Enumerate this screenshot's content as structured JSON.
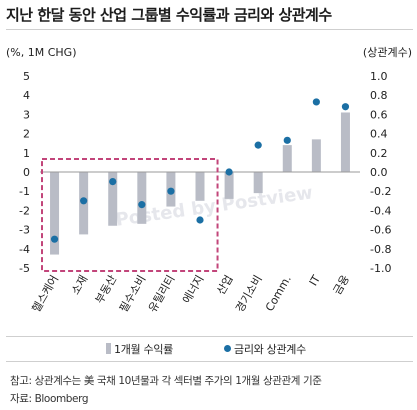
{
  "header": {
    "title": "지난 한달 동안 산업 그룹별 수익률과 금리와 상관계수"
  },
  "legend": {
    "bar_label": "1개월 수익률",
    "dot_label": "금리와 상관계수"
  },
  "footer": {
    "note": "참고: 상관계수는 美 국채 10년물과 각 섹터별 주가의 1개월 상관관계 기준",
    "source": "자료: Bloomberg"
  },
  "colors": {
    "bar": "#b9bcc6",
    "dot": "#1b6fa4",
    "highlight_box": "#c2457a"
  },
  "chart_data": {
    "type": "bar",
    "categories": [
      "헬스케어",
      "소재",
      "부동산",
      "필수소비",
      "유틸리티",
      "에너지",
      "산업",
      "경기소비",
      "Comm.",
      "IT",
      "금융"
    ],
    "left_axis": {
      "label": "(%, 1M CHG)",
      "ylim": [
        -5,
        5
      ],
      "ticks": [
        5,
        4,
        3,
        2,
        1,
        0,
        -1,
        -2,
        -3,
        -4,
        -5
      ]
    },
    "right_axis": {
      "label": "(상관계수)",
      "ylim": [
        -1.0,
        1.0
      ],
      "ticks": [
        "1.0",
        "0.8",
        "0.6",
        "0.4",
        "0.2",
        "0.0",
        "-0.2",
        "-0.4",
        "-0.6",
        "-0.8",
        "-1.0"
      ]
    },
    "series": [
      {
        "name": "1개월 수익률",
        "type": "bar",
        "axis": "left",
        "values": [
          -4.3,
          -3.25,
          -2.8,
          -2.7,
          -1.8,
          -1.5,
          -1.4,
          -1.1,
          1.4,
          1.7,
          3.1
        ]
      },
      {
        "name": "금리와 상관계수",
        "type": "scatter",
        "axis": "right",
        "values": [
          -0.7,
          -0.3,
          -0.1,
          -0.34,
          -0.2,
          -0.5,
          0.0,
          0.28,
          0.33,
          0.73,
          0.68
        ]
      }
    ],
    "highlight": {
      "from_category": "헬스케어",
      "to_category": "에너지",
      "style": "dashed"
    },
    "watermark": "Posted by Postview",
    "grid": false
  }
}
